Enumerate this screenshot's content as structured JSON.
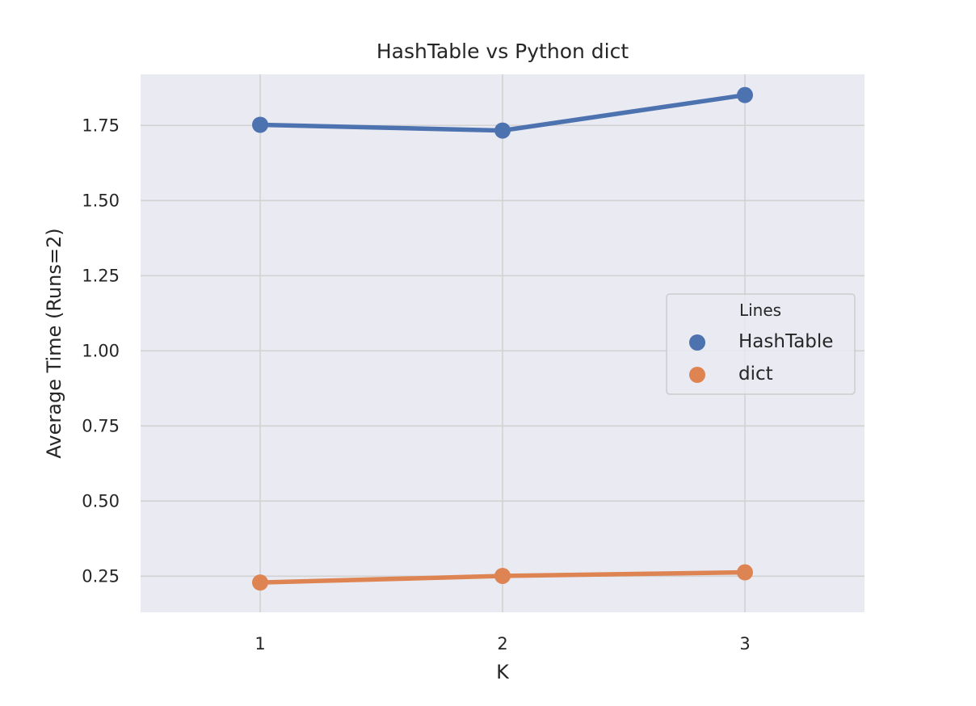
{
  "chart_data": {
    "type": "line",
    "title": "HashTable vs Python dict",
    "xlabel": "K",
    "ylabel": "Average Time (Runs=2)",
    "categories": [
      "1",
      "2",
      "3"
    ],
    "yticks": [
      "0.25",
      "0.50",
      "0.75",
      "1.00",
      "1.25",
      "1.50",
      "1.75"
    ],
    "ytick_values": [
      0.25,
      0.5,
      0.75,
      1.0,
      1.25,
      1.5,
      1.75
    ],
    "ylim": [
      0.13,
      1.92
    ],
    "grid": true,
    "background": "#eaeaf2",
    "legend": {
      "title": "Lines",
      "placement": "center-right"
    },
    "series": [
      {
        "name": "HashTable",
        "color": "#4c72b0",
        "values": [
          1.752,
          1.733,
          1.851
        ]
      },
      {
        "name": "dict",
        "color": "#dd8452",
        "values": [
          0.229,
          0.251,
          0.263
        ]
      }
    ]
  }
}
